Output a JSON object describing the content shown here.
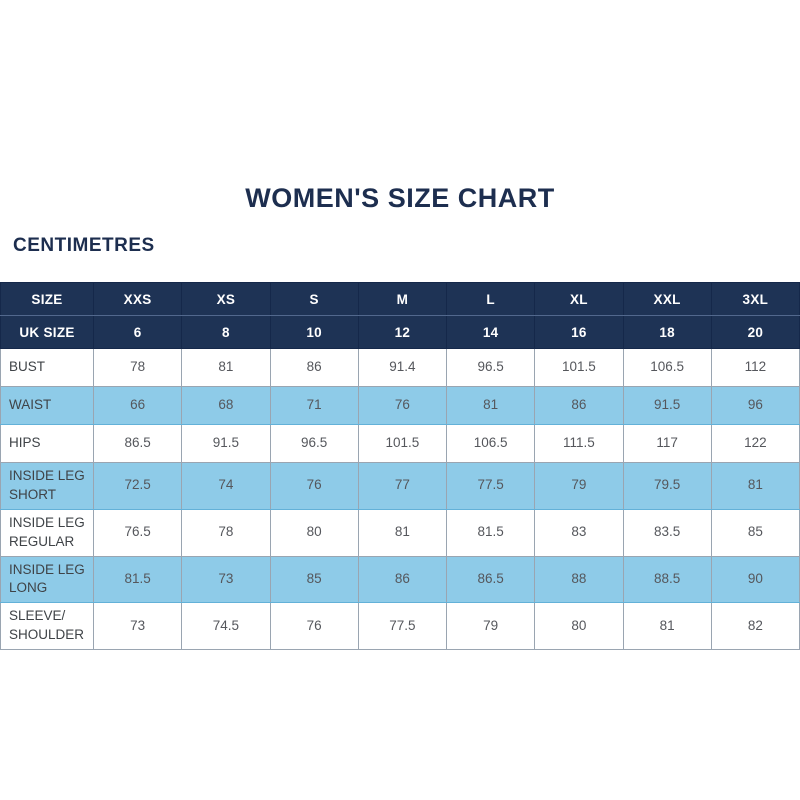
{
  "colors": {
    "navy": "#1e3355",
    "light_blue": "#8ecbe8",
    "title_text": "#1d2e4f",
    "value_text": "#55575c",
    "label_text": "#3f4347",
    "grid_line": "#9aa5b1"
  },
  "chart_data": {
    "type": "table",
    "title": "WOMEN'S SIZE CHART",
    "unit_label": "CENTIMETRES",
    "header_rows": [
      {
        "label": "SIZE",
        "values": [
          "XXS",
          "XS",
          "S",
          "M",
          "L",
          "XL",
          "XXL",
          "3XL"
        ]
      },
      {
        "label": "UK SIZE",
        "values": [
          "6",
          "8",
          "10",
          "12",
          "14",
          "16",
          "18",
          "20"
        ]
      }
    ],
    "rows": [
      {
        "label": "BUST",
        "shaded": false,
        "values": [
          "78",
          "81",
          "86",
          "91.4",
          "96.5",
          "101.5",
          "106.5",
          "112"
        ]
      },
      {
        "label": "WAIST",
        "shaded": true,
        "values": [
          "66",
          "68",
          "71",
          "76",
          "81",
          "86",
          "91.5",
          "96"
        ]
      },
      {
        "label": "HIPS",
        "shaded": false,
        "values": [
          "86.5",
          "91.5",
          "96.5",
          "101.5",
          "106.5",
          "111.5",
          "117",
          "122"
        ]
      },
      {
        "label": "INSIDE LEG\nSHORT",
        "shaded": true,
        "values": [
          "72.5",
          "74",
          "76",
          "77",
          "77.5",
          "79",
          "79.5",
          "81"
        ]
      },
      {
        "label": "INSIDE LEG\nREGULAR",
        "shaded": false,
        "values": [
          "76.5",
          "78",
          "80",
          "81",
          "81.5",
          "83",
          "83.5",
          "85"
        ]
      },
      {
        "label": "INSIDE LEG\nLONG",
        "shaded": true,
        "values": [
          "81.5",
          "73",
          "85",
          "86",
          "86.5",
          "88",
          "88.5",
          "90"
        ]
      },
      {
        "label": "SLEEVE/\nSHOULDER",
        "shaded": false,
        "values": [
          "73",
          "74.5",
          "76",
          "77.5",
          "79",
          "80",
          "81",
          "82"
        ]
      }
    ]
  }
}
